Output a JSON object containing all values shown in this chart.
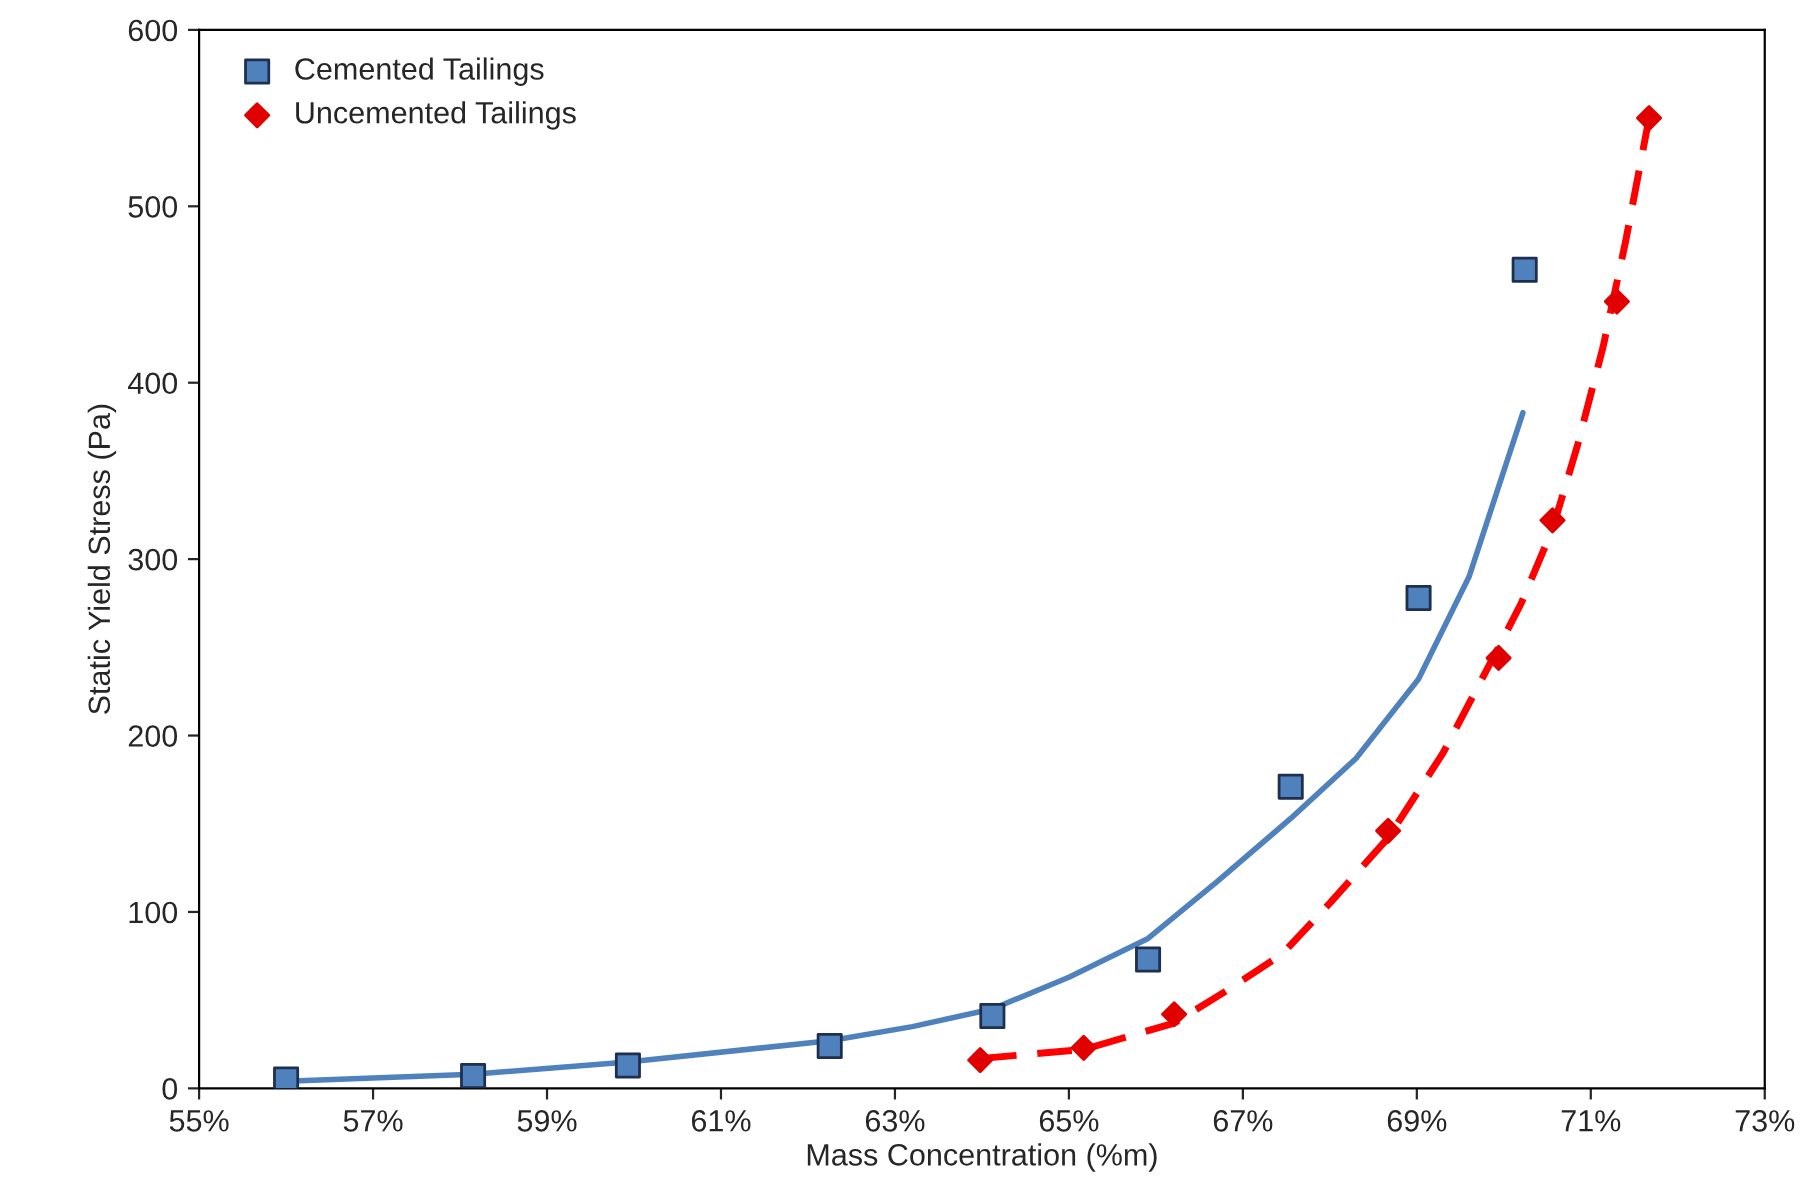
{
  "chart_data": {
    "type": "scatter",
    "xlabel": "Mass Concentration (%m)",
    "ylabel": "Static Yield Stress (Pa)",
    "xlim": [
      55,
      73
    ],
    "xticks": [
      {
        "value": 55,
        "label": "55%"
      },
      {
        "value": 57,
        "label": "57%"
      },
      {
        "value": 59,
        "label": "59%"
      },
      {
        "value": 61,
        "label": "61%"
      },
      {
        "value": 63,
        "label": "63%"
      },
      {
        "value": 65,
        "label": "65%"
      },
      {
        "value": 67,
        "label": "67%"
      },
      {
        "value": 69,
        "label": "69%"
      },
      {
        "value": 71,
        "label": "71%"
      },
      {
        "value": 73,
        "label": "73%"
      }
    ],
    "ylim": [
      0,
      600
    ],
    "yticks": [
      0,
      100,
      200,
      300,
      400,
      500,
      600
    ],
    "grid": false,
    "legend": "top left",
    "series": [
      {
        "type": "line",
        "color": "#4f81bd",
        "line_style": "solid",
        "marker": "none",
        "x": [
          56,
          58.15,
          59.93,
          62.25,
          63.2,
          64.12,
          65.0,
          65.91,
          66.7,
          67.55,
          68.3,
          69.02,
          69.6,
          70.22
        ],
        "values": [
          4,
          8,
          15,
          27,
          35,
          45,
          63,
          85,
          117,
          153,
          187,
          232,
          290,
          383
        ]
      },
      {
        "type": "line",
        "color": "#ff0000",
        "line_style": "dashed",
        "marker": "none",
        "x": [
          64,
          65.17,
          66.21,
          66.8,
          67.45,
          68.0,
          68.67,
          69.3,
          69.94,
          70.2,
          70.56,
          70.85,
          71.14,
          71.4,
          71.67
        ],
        "values": [
          17,
          22,
          37,
          55,
          76,
          105,
          142,
          190,
          250,
          275,
          317,
          365,
          420,
          480,
          550
        ]
      },
      {
        "name": "Cemented Tailings",
        "color": "#4f81bd",
        "marker": "square",
        "x": [
          56,
          58.15,
          59.93,
          62.25,
          64.12,
          65.91,
          67.55,
          69.02,
          70.24
        ],
        "values": [
          5,
          7,
          13,
          24,
          41,
          73,
          171,
          278,
          464
        ]
      },
      {
        "name": "Uncemented Tailings",
        "color": "#e00000",
        "marker": "diamond",
        "x": [
          63.98,
          65.17,
          66.21,
          68.67,
          69.94,
          70.56,
          71.3,
          71.67
        ],
        "values": [
          16,
          23,
          42,
          146,
          244,
          322,
          446,
          550
        ]
      }
    ]
  }
}
